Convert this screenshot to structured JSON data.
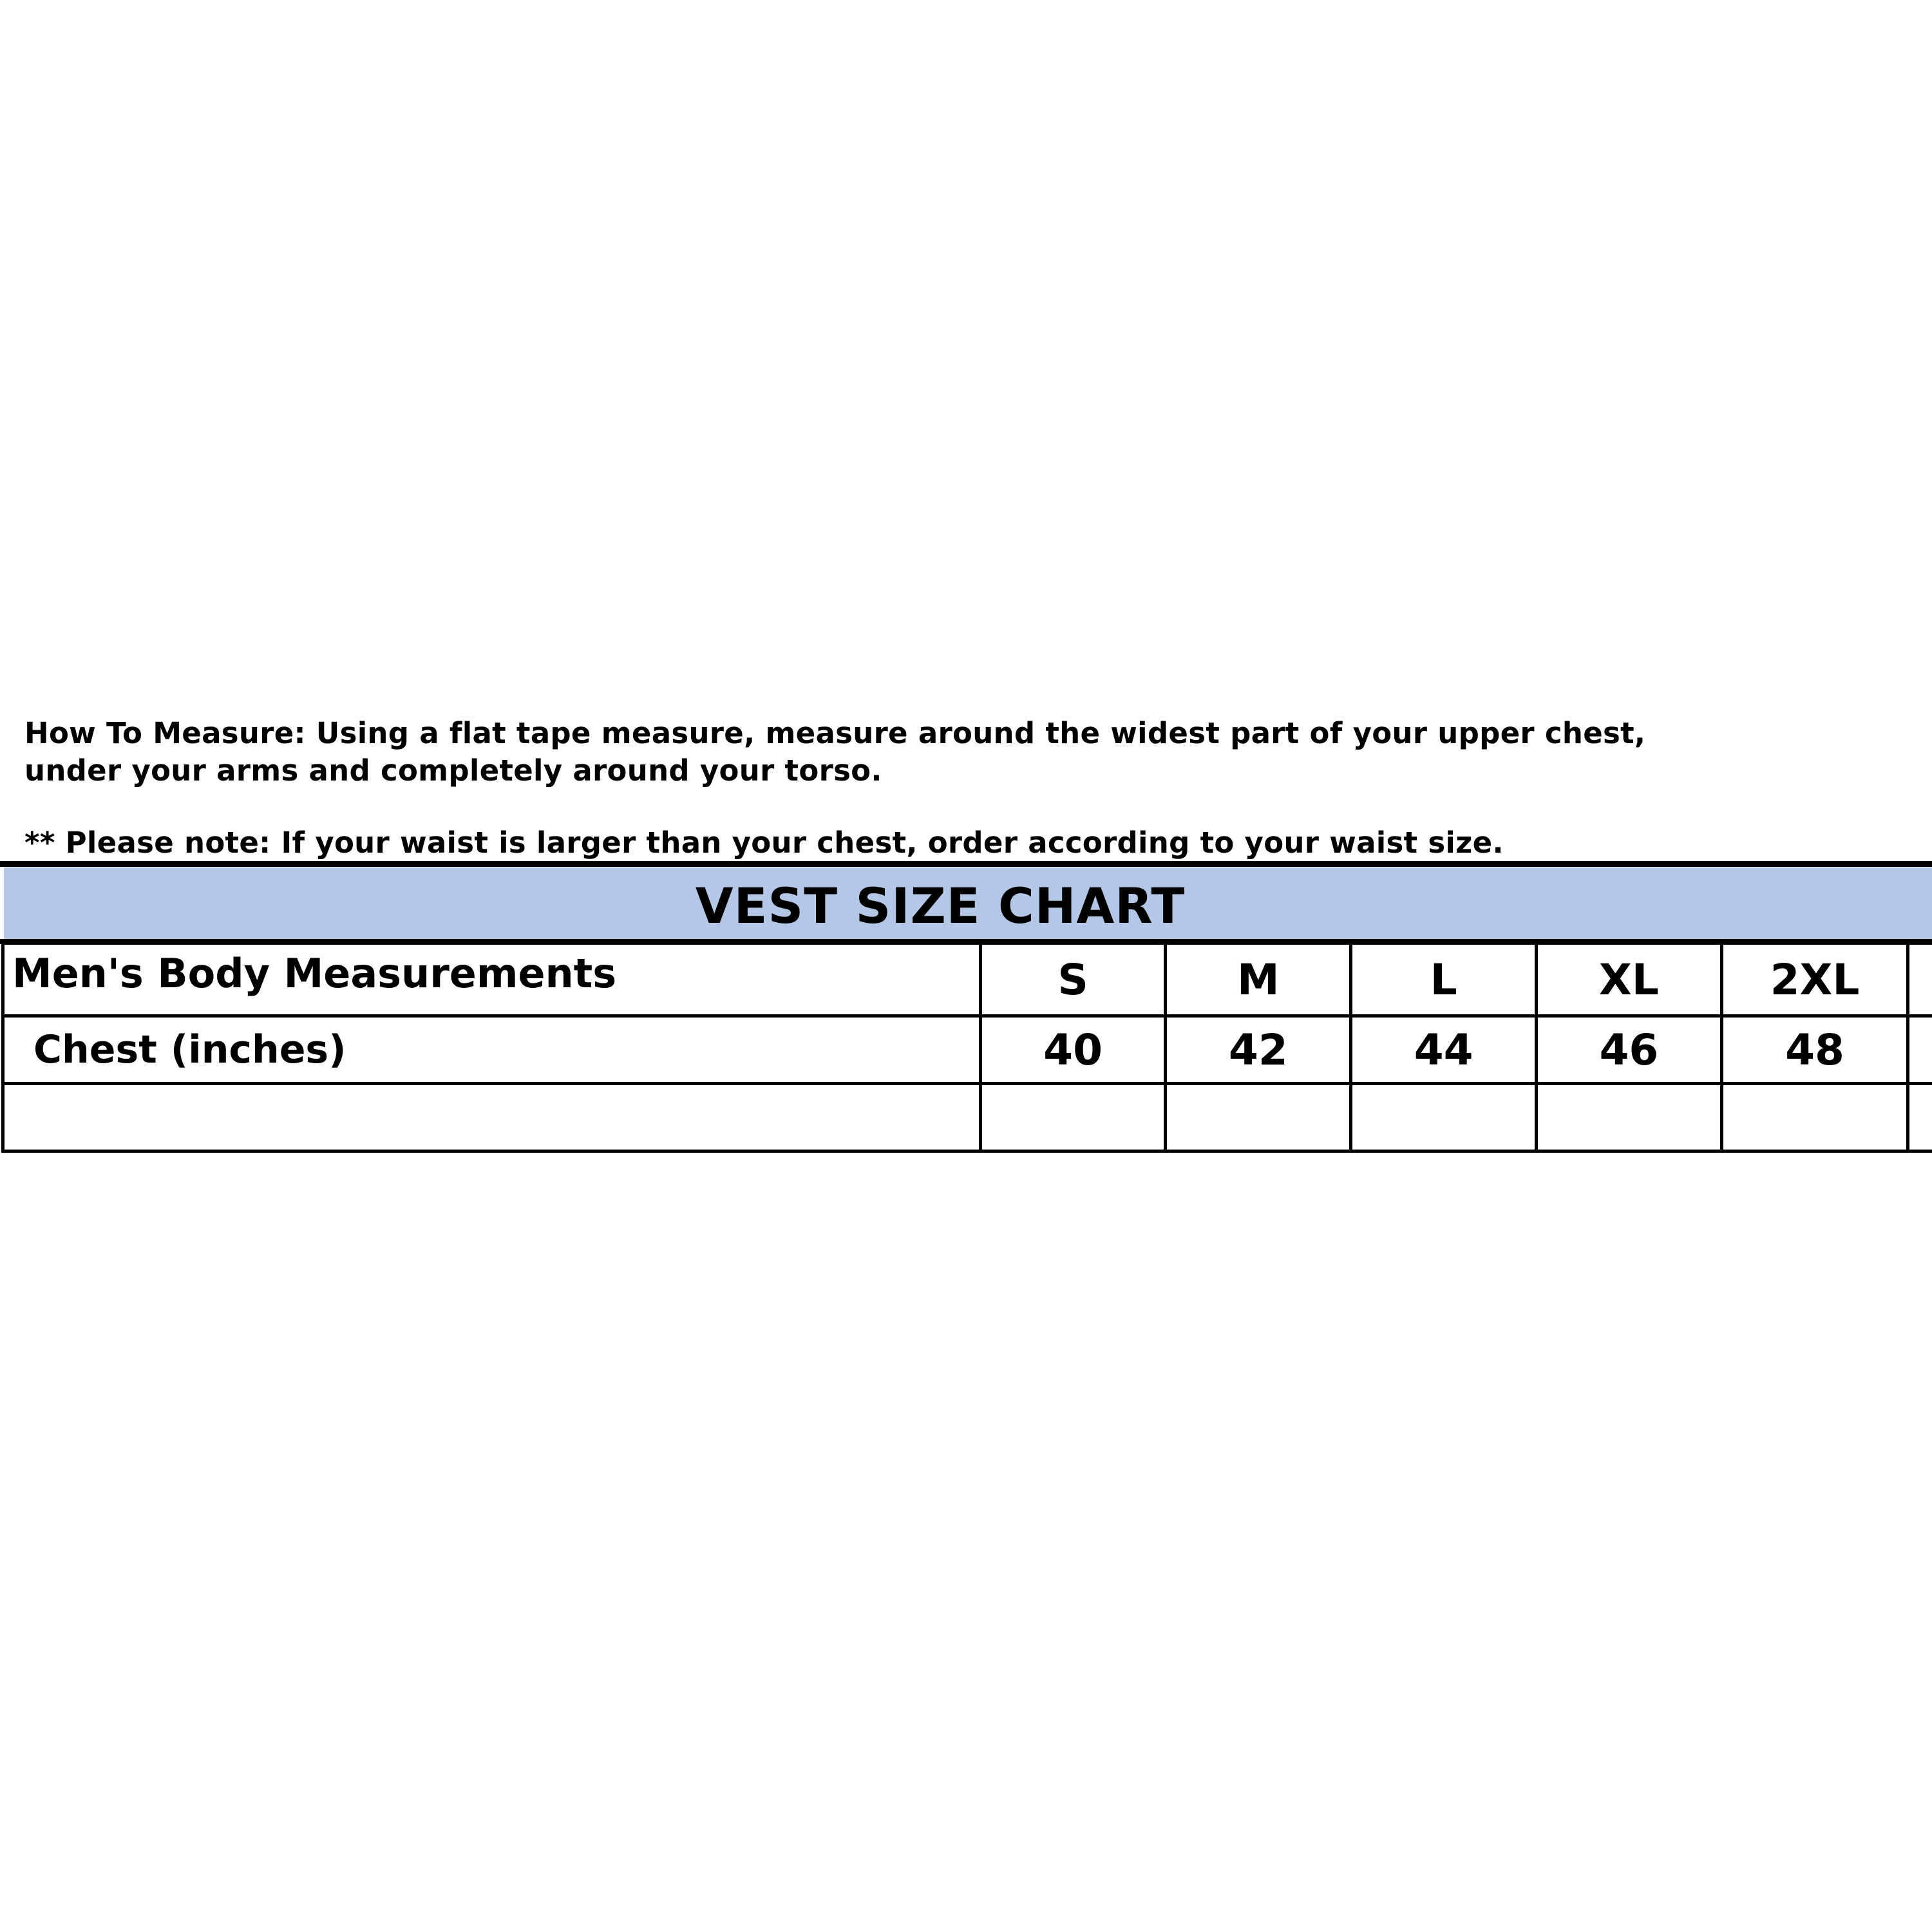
{
  "instructions": {
    "line1": "How To Measure: Using a flat tape measure, measure around the widest part of your upper chest,",
    "line2": "under your arms and completely around your torso.",
    "note": "** Please note: If your waist is larger than your chest, order according to your waist size."
  },
  "chart": {
    "title": "VEST SIZE CHART",
    "band_color": "#b4c7e7",
    "header_label": "Men's Body Measurements",
    "sizes": [
      "S",
      "M",
      "L",
      "XL",
      "2XL"
    ],
    "rows": [
      {
        "label": "Chest (inches)",
        "values": [
          "40",
          "42",
          "44",
          "46",
          "48"
        ]
      },
      {
        "label": "",
        "values": [
          "",
          "",
          "",
          "",
          ""
        ]
      }
    ]
  }
}
